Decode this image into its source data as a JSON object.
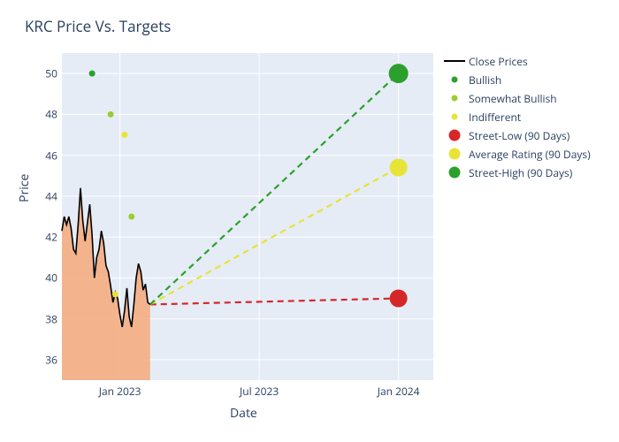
{
  "chart": {
    "title": "KRC Price Vs. Targets",
    "xlabel": "Date",
    "ylabel": "Price",
    "background_color": "#e5ecf6",
    "gridline_color": "#ffffff",
    "text_color": "#2a3f5f",
    "title_fontsize": 17,
    "label_fontsize": 14,
    "tick_fontsize": 12,
    "ylim": [
      35,
      51
    ],
    "yticks": [
      36,
      38,
      40,
      42,
      44,
      46,
      48,
      50
    ],
    "xdomain": [
      0,
      16
    ],
    "xticks": [
      {
        "t": 2.5,
        "label": "Jan 2023"
      },
      {
        "t": 8.5,
        "label": "Jul 2023"
      },
      {
        "t": 14.5,
        "label": "Jan 2024"
      }
    ],
    "close": {
      "color": "#000000",
      "fill_color": "#f4a97a",
      "fill_opacity": 0.85,
      "width": 1.6,
      "points": [
        [
          0.0,
          42.3
        ],
        [
          0.1,
          43.0
        ],
        [
          0.2,
          42.6
        ],
        [
          0.3,
          43.0
        ],
        [
          0.4,
          42.4
        ],
        [
          0.5,
          41.4
        ],
        [
          0.6,
          41.2
        ],
        [
          0.7,
          42.6
        ],
        [
          0.8,
          44.4
        ],
        [
          0.9,
          42.8
        ],
        [
          1.0,
          41.8
        ],
        [
          1.1,
          42.7
        ],
        [
          1.2,
          43.6
        ],
        [
          1.3,
          42.1
        ],
        [
          1.4,
          40.0
        ],
        [
          1.5,
          41.0
        ],
        [
          1.6,
          41.4
        ],
        [
          1.7,
          42.3
        ],
        [
          1.8,
          41.7
        ],
        [
          1.9,
          40.6
        ],
        [
          2.0,
          40.3
        ],
        [
          2.1,
          39.6
        ],
        [
          2.2,
          38.8
        ],
        [
          2.3,
          39.3
        ],
        [
          2.4,
          39.0
        ],
        [
          2.5,
          38.2
        ],
        [
          2.6,
          37.6
        ],
        [
          2.7,
          38.4
        ],
        [
          2.8,
          39.5
        ],
        [
          2.9,
          38.1
        ],
        [
          3.0,
          37.6
        ],
        [
          3.1,
          38.7
        ],
        [
          3.2,
          40.0
        ],
        [
          3.3,
          40.7
        ],
        [
          3.4,
          40.3
        ],
        [
          3.5,
          39.4
        ],
        [
          3.6,
          39.7
        ],
        [
          3.7,
          38.8
        ],
        [
          3.8,
          38.7
        ]
      ]
    },
    "ratings": [
      {
        "t": 1.3,
        "price": 50.0,
        "color": "#2ca02c"
      },
      {
        "t": 2.1,
        "price": 48.0,
        "color": "#9acd32"
      },
      {
        "t": 2.7,
        "price": 47.0,
        "color": "#e8e337"
      },
      {
        "t": 2.3,
        "price": 39.2,
        "color": "#e8e337"
      },
      {
        "t": 3.0,
        "price": 43.0,
        "color": "#9acd32"
      }
    ],
    "targets": [
      {
        "label": "Street-Low (90 Days)",
        "color": "#d62728",
        "start": [
          3.8,
          38.7
        ],
        "end": [
          14.5,
          39.0
        ],
        "size": 10
      },
      {
        "label": "Average Rating (90 Days)",
        "color": "#e8e337",
        "start": [
          3.8,
          38.7
        ],
        "end": [
          14.5,
          45.4
        ],
        "size": 10
      },
      {
        "label": "Street-High (90 Days)",
        "color": "#2ca02c",
        "start": [
          3.8,
          38.7
        ],
        "end": [
          14.5,
          50.0
        ],
        "size": 11
      }
    ],
    "legend": [
      {
        "type": "line",
        "color": "#000000",
        "label": "Close Prices"
      },
      {
        "type": "dot-sm",
        "color": "#2ca02c",
        "label": "Bullish"
      },
      {
        "type": "dot-sm",
        "color": "#9acd32",
        "label": "Somewhat Bullish"
      },
      {
        "type": "dot-sm",
        "color": "#e8e337",
        "label": "Indifferent"
      },
      {
        "type": "dot-lg",
        "color": "#d62728",
        "label": "Street-Low (90 Days)"
      },
      {
        "type": "dot-lg",
        "color": "#e8e337",
        "label": "Average Rating (90 Days)"
      },
      {
        "type": "dot-lg",
        "color": "#2ca02c",
        "label": "Street-High (90 Days)"
      }
    ]
  }
}
